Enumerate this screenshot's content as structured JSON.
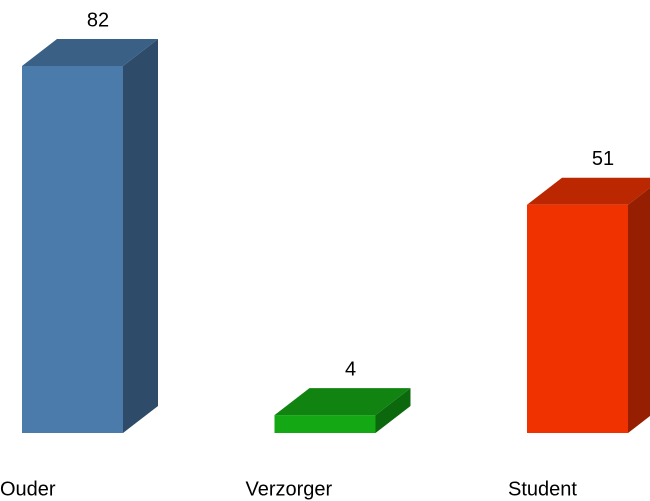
{
  "chart_data": {
    "type": "bar3d",
    "categories": [
      "Ouder",
      "Verzorger",
      "Student"
    ],
    "values": [
      82,
      4,
      51
    ],
    "colors": [
      "#4a7bab",
      "#14a814",
      "#f03200"
    ]
  }
}
